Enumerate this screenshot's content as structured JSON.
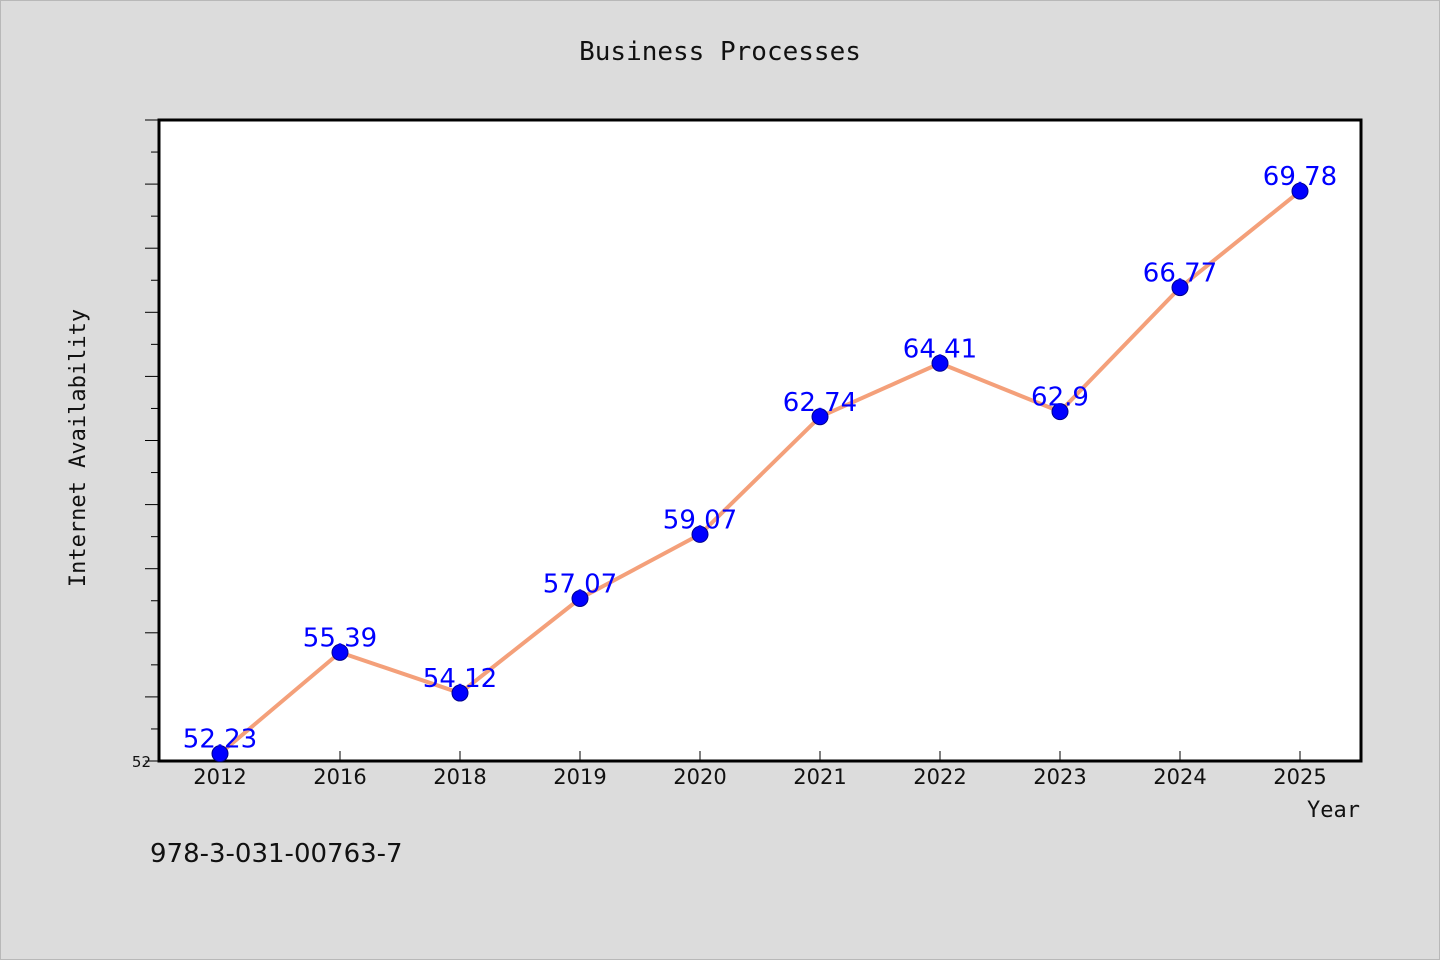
{
  "chart_data": {
    "type": "line",
    "title": "Business Processes",
    "xlabel": "Year",
    "ylabel": "Internet Availability",
    "categories": [
      "2012",
      "2016",
      "2018",
      "2019",
      "2020",
      "2021",
      "2022",
      "2023",
      "2024",
      "2025"
    ],
    "series": [
      {
        "values": [
          52.23,
          55.39,
          54.12,
          57.07,
          59.07,
          62.74,
          64.41,
          62.9,
          66.77,
          69.78
        ],
        "labels": [
          "52.23",
          "55.39",
          "54.12",
          "57.07",
          "59.07",
          "62.74",
          "64.41",
          "62.9",
          "66.77",
          "69.78"
        ]
      }
    ],
    "y_tick_labels": [
      "52"
    ],
    "ylim": [
      52,
      72
    ],
    "grid": false,
    "colors": {
      "line": "#f4a07a",
      "marker": "#0000ff",
      "label": "#0000ff",
      "background": "#dcdcdc",
      "plot_background": "#ffffff"
    }
  },
  "footer": {
    "isbn": "978-3-031-00763-7"
  }
}
